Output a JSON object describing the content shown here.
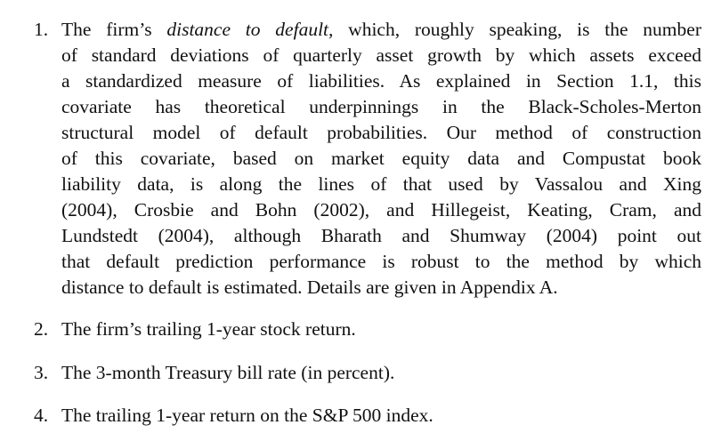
{
  "items": [
    {
      "number": "1.",
      "lines": [
        {
          "before": "The firm’s ",
          "italic": "distance to default,",
          "after": " which, roughly speaking, is the number"
        },
        {
          "text": "of standard deviations of quarterly asset growth by which assets exceed"
        },
        {
          "text": "a standardized measure of liabilities.  As explained in Section 1.1, this"
        },
        {
          "text": "covariate has theoretical underpinnings in the Black-Scholes-Merton"
        },
        {
          "text": "structural model of default probabilities.  Our method of construction"
        },
        {
          "text": "of this covariate, based on market equity data and Compustat book"
        },
        {
          "text": "liability data, is along the lines of that used by Vassalou and Xing"
        },
        {
          "text": "(2004), Crosbie and Bohn (2002), and Hillegeist, Keating, Cram, and"
        },
        {
          "text": "Lundstedt (2004), although Bharath and Shumway (2004) point out"
        },
        {
          "text": "that default prediction performance is robust to the method by which"
        },
        {
          "text": "distance to default is estimated.  Details are given in Appendix A."
        }
      ]
    },
    {
      "number": "2.",
      "text": "The firm’s trailing 1-year stock return."
    },
    {
      "number": "3.",
      "text": "The 3-month Treasury bill rate (in percent)."
    },
    {
      "number": "4.",
      "text": "The trailing 1-year return on the S&P 500 index."
    }
  ]
}
